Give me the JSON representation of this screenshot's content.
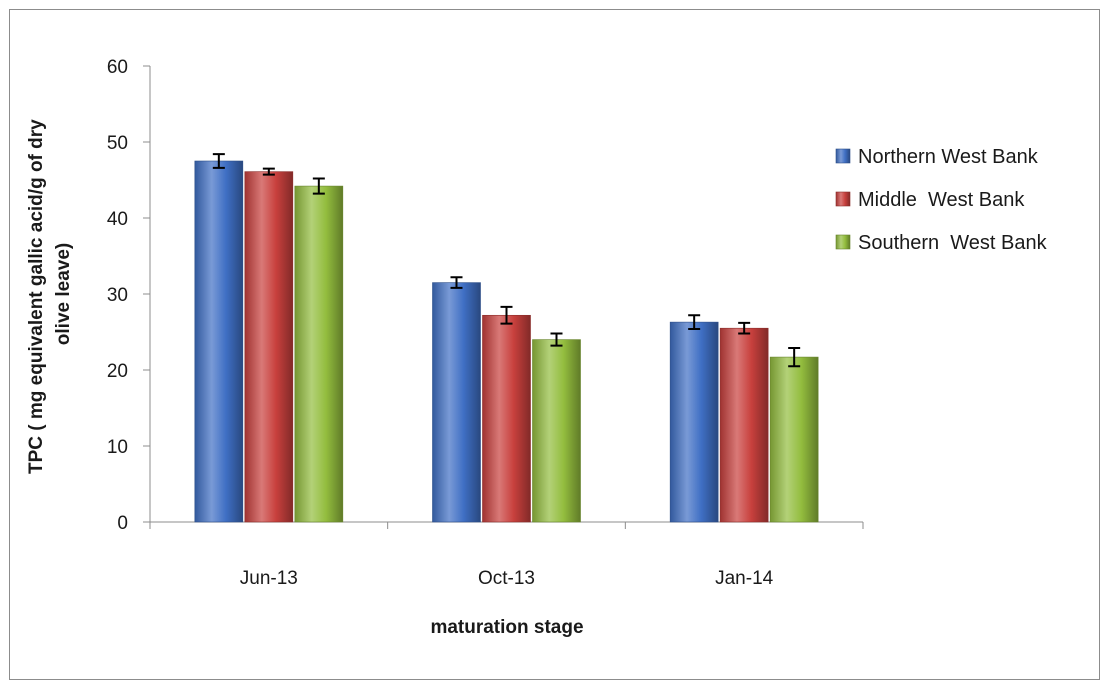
{
  "chart_data": {
    "type": "bar",
    "title": "",
    "xlabel": "maturation stage",
    "ylabel_lines": [
      "TPC  ( mg equivalent gallic acid/g of dry",
      "olive leave)"
    ],
    "categories": [
      "Jun-13",
      "Oct-13",
      "Jan-14"
    ],
    "ylim": [
      0,
      60
    ],
    "yticks": [
      0,
      10,
      20,
      30,
      40,
      50,
      60
    ],
    "grid": false,
    "legend_position": "right",
    "series": [
      {
        "name": "Northern West Bank",
        "color": "#3f6fc4",
        "values": [
          47.5,
          31.5,
          26.3
        ],
        "errors": [
          0.9,
          0.7,
          0.9
        ]
      },
      {
        "name": "Middle  West Bank",
        "color": "#c8403d",
        "values": [
          46.1,
          27.2,
          25.5
        ],
        "errors": [
          0.4,
          1.1,
          0.7
        ]
      },
      {
        "name": "Southern  West Bank",
        "color": "#93bd3e",
        "values": [
          44.2,
          24.0,
          21.7
        ],
        "errors": [
          1.0,
          0.8,
          1.2
        ]
      }
    ]
  }
}
